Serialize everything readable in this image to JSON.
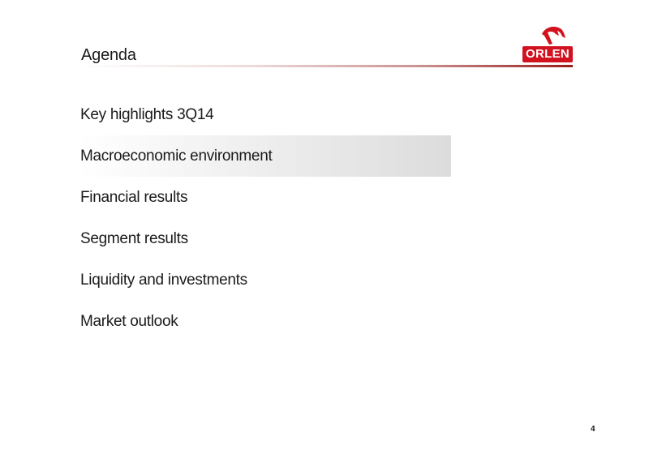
{
  "header": {
    "title": "Agenda",
    "logo_text": "ORLEN"
  },
  "agenda": {
    "items": [
      {
        "label": "Key highlights 3Q14",
        "active": false
      },
      {
        "label": "Macroeconomic environment",
        "active": true
      },
      {
        "label": "Financial results",
        "active": false
      },
      {
        "label": "Segment results",
        "active": false
      },
      {
        "label": "Liquidity and investments",
        "active": false
      },
      {
        "label": "Market outlook",
        "active": false
      }
    ]
  },
  "footer": {
    "page_number": "4"
  },
  "colors": {
    "brand_red": "#d2121f",
    "rule_dark": "#9a1b1b",
    "highlight_gray": "#dcdcdc"
  },
  "icons": {
    "logo_mark": "eagle-head-icon"
  }
}
